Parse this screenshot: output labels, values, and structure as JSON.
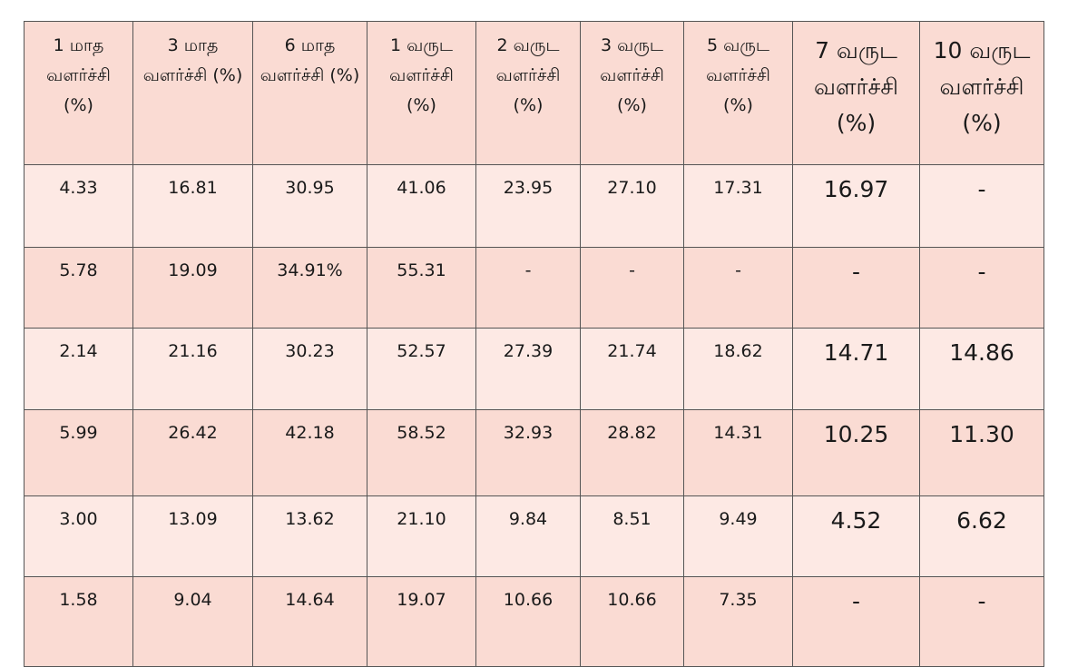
{
  "table": {
    "headers": [
      "1 மாத வளர்ச்சி (%)",
      "3 மாத வளர்ச்சி (%)",
      "6 மாத வளர்ச்சி (%)",
      "1 வருட வளர்ச்சி (%)",
      "2 வருட வளர்ச்சி (%)",
      "3 வருட வளர்ச்சி (%)",
      "5 வருட வளர்ச்சி (%)",
      "7 வருட வளர்ச்சி (%)",
      "10 வருட வளர்ச்சி (%)"
    ],
    "rows": [
      [
        "4.33",
        "16.81",
        "30.95",
        "41.06",
        "23.95",
        "27.10",
        "17.31",
        "16.97",
        "-"
      ],
      [
        "5.78",
        "19.09",
        "34.91%",
        "55.31",
        "-",
        "-",
        "-",
        "-",
        "-"
      ],
      [
        "2.14",
        "21.16",
        "30.23",
        "52.57",
        "27.39",
        "21.74",
        "18.62",
        "14.71",
        "14.86"
      ],
      [
        "5.99",
        "26.42",
        "42.18",
        "58.52",
        "32.93",
        "28.82",
        "14.31",
        "10.25",
        "11.30"
      ],
      [
        "3.00",
        "13.09",
        "13.62",
        "21.10",
        "9.84",
        "8.51",
        "9.49",
        "4.52",
        "6.62"
      ],
      [
        "1.58",
        "9.04",
        "14.64",
        "19.07",
        "10.66",
        "10.66",
        "7.35",
        "-",
        "-"
      ]
    ]
  },
  "colors": {
    "header_bg": "#fadbd3",
    "row_light": "#fde9e4",
    "row_dark": "#fadbd3",
    "border": "#555555"
  }
}
